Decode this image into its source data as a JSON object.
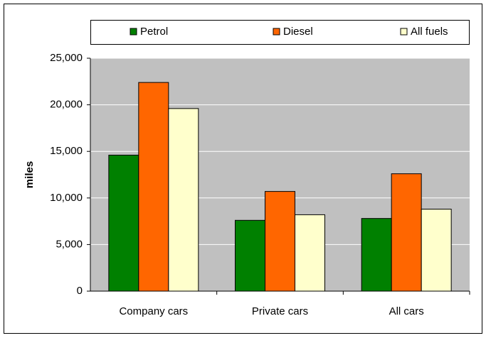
{
  "chart_data": {
    "type": "bar",
    "y_label": "miles",
    "categories": [
      "Company cars",
      "Private cars",
      "All cars"
    ],
    "series": [
      {
        "name": "Petrol",
        "color": "#008000",
        "values": [
          14600,
          7600,
          7800
        ]
      },
      {
        "name": "Diesel",
        "color": "#ff6600",
        "values": [
          22400,
          10700,
          12600
        ]
      },
      {
        "name": "All fuels",
        "color": "#ffffcc",
        "values": [
          19600,
          8200,
          8800
        ]
      }
    ],
    "ylim": [
      0,
      25000
    ],
    "yticks": [
      0,
      {
        "value": 5000,
        "label": "5,000"
      },
      {
        "value": 10000,
        "label": "10,000"
      },
      {
        "value": 15000,
        "label": "15,000"
      },
      {
        "value": 20000,
        "label": "20,000"
      },
      {
        "value": 25000,
        "label": "25,000"
      }
    ],
    "grid": true,
    "plot_background": "#c0c0c0"
  }
}
